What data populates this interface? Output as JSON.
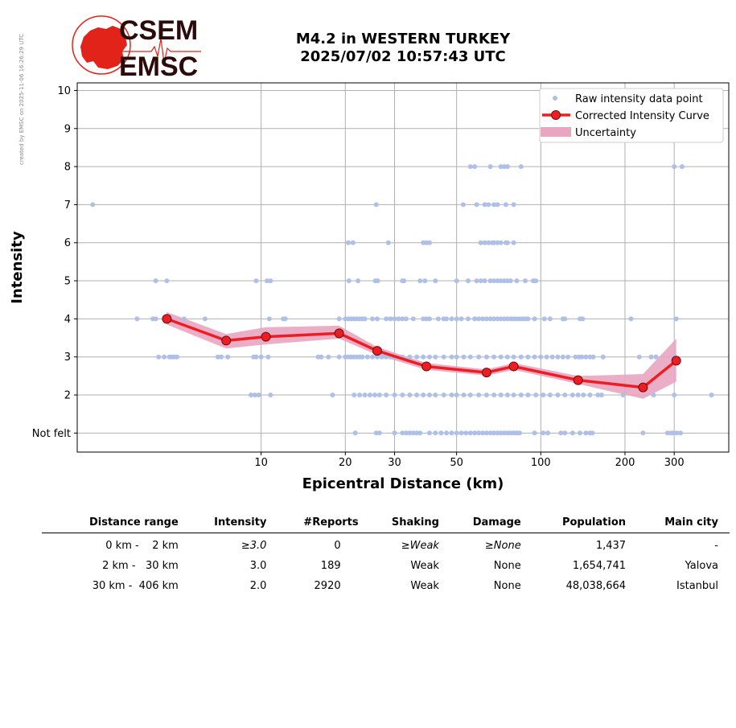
{
  "watermark": "created by EMSC on 2025-11-06 16:26:29 UTC",
  "logo": {
    "line1": "CSEM",
    "line2": "EMSC",
    "red": "#e2231a",
    "dark": "#2b0a0a"
  },
  "title": {
    "line1": "M4.2 in WESTERN TURKEY",
    "line2": "2025/07/02 10:57:43 UTC"
  },
  "chart_data": {
    "type": "scatter",
    "xlabel": "Epicentral Distance (km)",
    "ylabel": "Intensity",
    "xscale": "log",
    "xlim": [
      2.2,
      470
    ],
    "ylim": [
      0.5,
      10.2
    ],
    "xticks": [
      10,
      20,
      30,
      50,
      100,
      200,
      300
    ],
    "xtick_labels": [
      "10",
      "20",
      "30",
      "50",
      "100",
      "200",
      "300"
    ],
    "yticks": [
      1,
      2,
      3,
      4,
      5,
      6,
      7,
      8,
      9,
      10
    ],
    "ytick_labels": [
      "Not felt",
      "2",
      "3",
      "4",
      "5",
      "6",
      "7",
      "8",
      "9",
      "10"
    ],
    "grid": true,
    "legend_position": "top-right",
    "colors": {
      "raw": "#aebfe8",
      "curve": "#ee1d23",
      "uncertainty": "#e8a6c1",
      "grid": "#b0b0b0"
    },
    "legend": [
      "Raw intensity data point",
      "Corrected Intensity Curve",
      "Uncertainty"
    ],
    "raw_points": [
      [
        2.5,
        7
      ],
      [
        25.8,
        7
      ],
      [
        52.8,
        7
      ],
      [
        59,
        7
      ],
      [
        63,
        7
      ],
      [
        65,
        7
      ],
      [
        68,
        7
      ],
      [
        70,
        7
      ],
      [
        75,
        7
      ],
      [
        80,
        7
      ],
      [
        56,
        8
      ],
      [
        58,
        8
      ],
      [
        66,
        8
      ],
      [
        72,
        8
      ],
      [
        74,
        8
      ],
      [
        76,
        8
      ],
      [
        85,
        8
      ],
      [
        300,
        8
      ],
      [
        320,
        8
      ],
      [
        20.5,
        6
      ],
      [
        21.3,
        6
      ],
      [
        28.5,
        6
      ],
      [
        38,
        6
      ],
      [
        39,
        6
      ],
      [
        40,
        6
      ],
      [
        61,
        6
      ],
      [
        63,
        6
      ],
      [
        65,
        6
      ],
      [
        67,
        6
      ],
      [
        68,
        6
      ],
      [
        70,
        6
      ],
      [
        72,
        6
      ],
      [
        75,
        6
      ],
      [
        76,
        6
      ],
      [
        80,
        6
      ],
      [
        4.2,
        5
      ],
      [
        4.6,
        5
      ],
      [
        9.6,
        5
      ],
      [
        10.5,
        5
      ],
      [
        10.8,
        5
      ],
      [
        20.6,
        5
      ],
      [
        22.2,
        5
      ],
      [
        25.6,
        5
      ],
      [
        26.1,
        5
      ],
      [
        32,
        5
      ],
      [
        32.4,
        5
      ],
      [
        37,
        5
      ],
      [
        38.5,
        5
      ],
      [
        42,
        5
      ],
      [
        50,
        5
      ],
      [
        55,
        5
      ],
      [
        59,
        5
      ],
      [
        61,
        5
      ],
      [
        63,
        5
      ],
      [
        66,
        5
      ],
      [
        68,
        5
      ],
      [
        70,
        5
      ],
      [
        72,
        5
      ],
      [
        74,
        5
      ],
      [
        76,
        5
      ],
      [
        78,
        5
      ],
      [
        82,
        5
      ],
      [
        88,
        5
      ],
      [
        94,
        5
      ],
      [
        96,
        5
      ],
      [
        3.6,
        4
      ],
      [
        4.1,
        4
      ],
      [
        4.2,
        4
      ],
      [
        4.5,
        4
      ],
      [
        4.55,
        4
      ],
      [
        4.8,
        4
      ],
      [
        5.3,
        4
      ],
      [
        6.3,
        4
      ],
      [
        10.7,
        4
      ],
      [
        12,
        4
      ],
      [
        12.2,
        4
      ],
      [
        19,
        4
      ],
      [
        20,
        4
      ],
      [
        20.5,
        4
      ],
      [
        21,
        4
      ],
      [
        21.5,
        4
      ],
      [
        22,
        4
      ],
      [
        22.5,
        4
      ],
      [
        23,
        4
      ],
      [
        23.5,
        4
      ],
      [
        25,
        4
      ],
      [
        26,
        4
      ],
      [
        28,
        4
      ],
      [
        29,
        4
      ],
      [
        30,
        4
      ],
      [
        31,
        4
      ],
      [
        32,
        4
      ],
      [
        33,
        4
      ],
      [
        35,
        4
      ],
      [
        38,
        4
      ],
      [
        39,
        4
      ],
      [
        40,
        4
      ],
      [
        43,
        4
      ],
      [
        45,
        4
      ],
      [
        46,
        4
      ],
      [
        48,
        4
      ],
      [
        50,
        4
      ],
      [
        52,
        4
      ],
      [
        55,
        4
      ],
      [
        58,
        4
      ],
      [
        60,
        4
      ],
      [
        62,
        4
      ],
      [
        64,
        4
      ],
      [
        66,
        4
      ],
      [
        68,
        4
      ],
      [
        70,
        4
      ],
      [
        72,
        4
      ],
      [
        74,
        4
      ],
      [
        76,
        4
      ],
      [
        78,
        4
      ],
      [
        80,
        4
      ],
      [
        82,
        4
      ],
      [
        84,
        4
      ],
      [
        86,
        4
      ],
      [
        88,
        4
      ],
      [
        90,
        4
      ],
      [
        95,
        4
      ],
      [
        103,
        4
      ],
      [
        108,
        4
      ],
      [
        120,
        4
      ],
      [
        122,
        4
      ],
      [
        138,
        4
      ],
      [
        141,
        4
      ],
      [
        210,
        4
      ],
      [
        305,
        4
      ],
      [
        4.3,
        3
      ],
      [
        4.5,
        3
      ],
      [
        4.7,
        3
      ],
      [
        4.8,
        3
      ],
      [
        4.9,
        3
      ],
      [
        5.0,
        3
      ],
      [
        7.0,
        3
      ],
      [
        7.2,
        3
      ],
      [
        7.6,
        3
      ],
      [
        9.4,
        3
      ],
      [
        9.6,
        3
      ],
      [
        10.0,
        3
      ],
      [
        10.6,
        3
      ],
      [
        16,
        3
      ],
      [
        16.4,
        3
      ],
      [
        17.4,
        3
      ],
      [
        19,
        3
      ],
      [
        20,
        3
      ],
      [
        20.5,
        3
      ],
      [
        21,
        3
      ],
      [
        21.5,
        3
      ],
      [
        22,
        3
      ],
      [
        22.5,
        3
      ],
      [
        23,
        3
      ],
      [
        24,
        3
      ],
      [
        25,
        3
      ],
      [
        26,
        3
      ],
      [
        27,
        3
      ],
      [
        28,
        3
      ],
      [
        29,
        3
      ],
      [
        30,
        3
      ],
      [
        32,
        3
      ],
      [
        34,
        3
      ],
      [
        36,
        3
      ],
      [
        38,
        3
      ],
      [
        40,
        3
      ],
      [
        42,
        3
      ],
      [
        45,
        3
      ],
      [
        48,
        3
      ],
      [
        50,
        3
      ],
      [
        53,
        3
      ],
      [
        56,
        3
      ],
      [
        60,
        3
      ],
      [
        64,
        3
      ],
      [
        68,
        3
      ],
      [
        72,
        3
      ],
      [
        76,
        3
      ],
      [
        80,
        3
      ],
      [
        85,
        3
      ],
      [
        90,
        3
      ],
      [
        95,
        3
      ],
      [
        100,
        3
      ],
      [
        105,
        3
      ],
      [
        110,
        3
      ],
      [
        115,
        3
      ],
      [
        120,
        3
      ],
      [
        125,
        3
      ],
      [
        133,
        3
      ],
      [
        137,
        3
      ],
      [
        140,
        3
      ],
      [
        145,
        3
      ],
      [
        150,
        3
      ],
      [
        154,
        3
      ],
      [
        167,
        3
      ],
      [
        225,
        3
      ],
      [
        248,
        3
      ],
      [
        258,
        3
      ],
      [
        300,
        3
      ],
      [
        9.2,
        2
      ],
      [
        9.5,
        2
      ],
      [
        9.8,
        2
      ],
      [
        10.8,
        2
      ],
      [
        18,
        2
      ],
      [
        21.5,
        2
      ],
      [
        22.5,
        2
      ],
      [
        23.5,
        2
      ],
      [
        24.5,
        2
      ],
      [
        25.5,
        2
      ],
      [
        26.5,
        2
      ],
      [
        28,
        2
      ],
      [
        30,
        2
      ],
      [
        32,
        2
      ],
      [
        34,
        2
      ],
      [
        36,
        2
      ],
      [
        38,
        2
      ],
      [
        40,
        2
      ],
      [
        42,
        2
      ],
      [
        45,
        2
      ],
      [
        48,
        2
      ],
      [
        50,
        2
      ],
      [
        53,
        2
      ],
      [
        56,
        2
      ],
      [
        60,
        2
      ],
      [
        64,
        2
      ],
      [
        68,
        2
      ],
      [
        72,
        2
      ],
      [
        76,
        2
      ],
      [
        80,
        2
      ],
      [
        85,
        2
      ],
      [
        90,
        2
      ],
      [
        96,
        2
      ],
      [
        102,
        2
      ],
      [
        108,
        2
      ],
      [
        115,
        2
      ],
      [
        122,
        2
      ],
      [
        130,
        2
      ],
      [
        136,
        2
      ],
      [
        142,
        2
      ],
      [
        150,
        2
      ],
      [
        160,
        2
      ],
      [
        165,
        2
      ],
      [
        197,
        2
      ],
      [
        253,
        2
      ],
      [
        300,
        2
      ],
      [
        408,
        2
      ],
      [
        21.7,
        1
      ],
      [
        25.8,
        1
      ],
      [
        26.5,
        1
      ],
      [
        30,
        1
      ],
      [
        32,
        1
      ],
      [
        33,
        1
      ],
      [
        34,
        1
      ],
      [
        35,
        1
      ],
      [
        36,
        1
      ],
      [
        37,
        1
      ],
      [
        40,
        1
      ],
      [
        42,
        1
      ],
      [
        44,
        1
      ],
      [
        46,
        1
      ],
      [
        48,
        1
      ],
      [
        50,
        1
      ],
      [
        52,
        1
      ],
      [
        54,
        1
      ],
      [
        56,
        1
      ],
      [
        58,
        1
      ],
      [
        60,
        1
      ],
      [
        62,
        1
      ],
      [
        64,
        1
      ],
      [
        66,
        1
      ],
      [
        68,
        1
      ],
      [
        70,
        1
      ],
      [
        72,
        1
      ],
      [
        74,
        1
      ],
      [
        76,
        1
      ],
      [
        78,
        1
      ],
      [
        80,
        1
      ],
      [
        82,
        1
      ],
      [
        84,
        1
      ],
      [
        95,
        1
      ],
      [
        102,
        1
      ],
      [
        106,
        1
      ],
      [
        118,
        1
      ],
      [
        122,
        1
      ],
      [
        130,
        1
      ],
      [
        138,
        1
      ],
      [
        145,
        1
      ],
      [
        150,
        1
      ],
      [
        153,
        1
      ],
      [
        232,
        1
      ],
      [
        284,
        1
      ],
      [
        292,
        1
      ],
      [
        298,
        1
      ],
      [
        306,
        1
      ],
      [
        316,
        1
      ]
    ],
    "curve": {
      "x": [
        4.6,
        7.5,
        10.4,
        19,
        26,
        39,
        64,
        80,
        136,
        232,
        305
      ],
      "y": [
        4.0,
        3.43,
        3.53,
        3.62,
        3.16,
        2.75,
        2.59,
        2.75,
        2.39,
        2.2,
        2.9
      ],
      "upper": [
        4.18,
        3.6,
        3.78,
        3.82,
        3.26,
        2.84,
        2.67,
        2.84,
        2.5,
        2.55,
        3.48
      ],
      "lower": [
        3.85,
        3.22,
        3.33,
        3.48,
        3.05,
        2.66,
        2.51,
        2.66,
        2.29,
        1.9,
        2.35
      ]
    }
  },
  "table": {
    "headers": [
      "Distance range",
      "Intensity",
      "#Reports",
      "Shaking",
      "Damage",
      "Population",
      "Main city"
    ],
    "rows": [
      {
        "range": "0 km -    2 km",
        "intensity": "≥3.0",
        "reports": "0",
        "shaking": "≥Weak",
        "damage": "≥None",
        "population": "1,437",
        "city": "-"
      },
      {
        "range": "2 km -   30 km",
        "intensity": "3.0",
        "reports": "189",
        "shaking": "Weak",
        "damage": "None",
        "population": "1,654,741",
        "city": "Yalova"
      },
      {
        "range": "30 km -  406 km",
        "intensity": "2.0",
        "reports": "2920",
        "shaking": "Weak",
        "damage": "None",
        "population": "48,038,664",
        "city": "Istanbul"
      }
    ]
  }
}
